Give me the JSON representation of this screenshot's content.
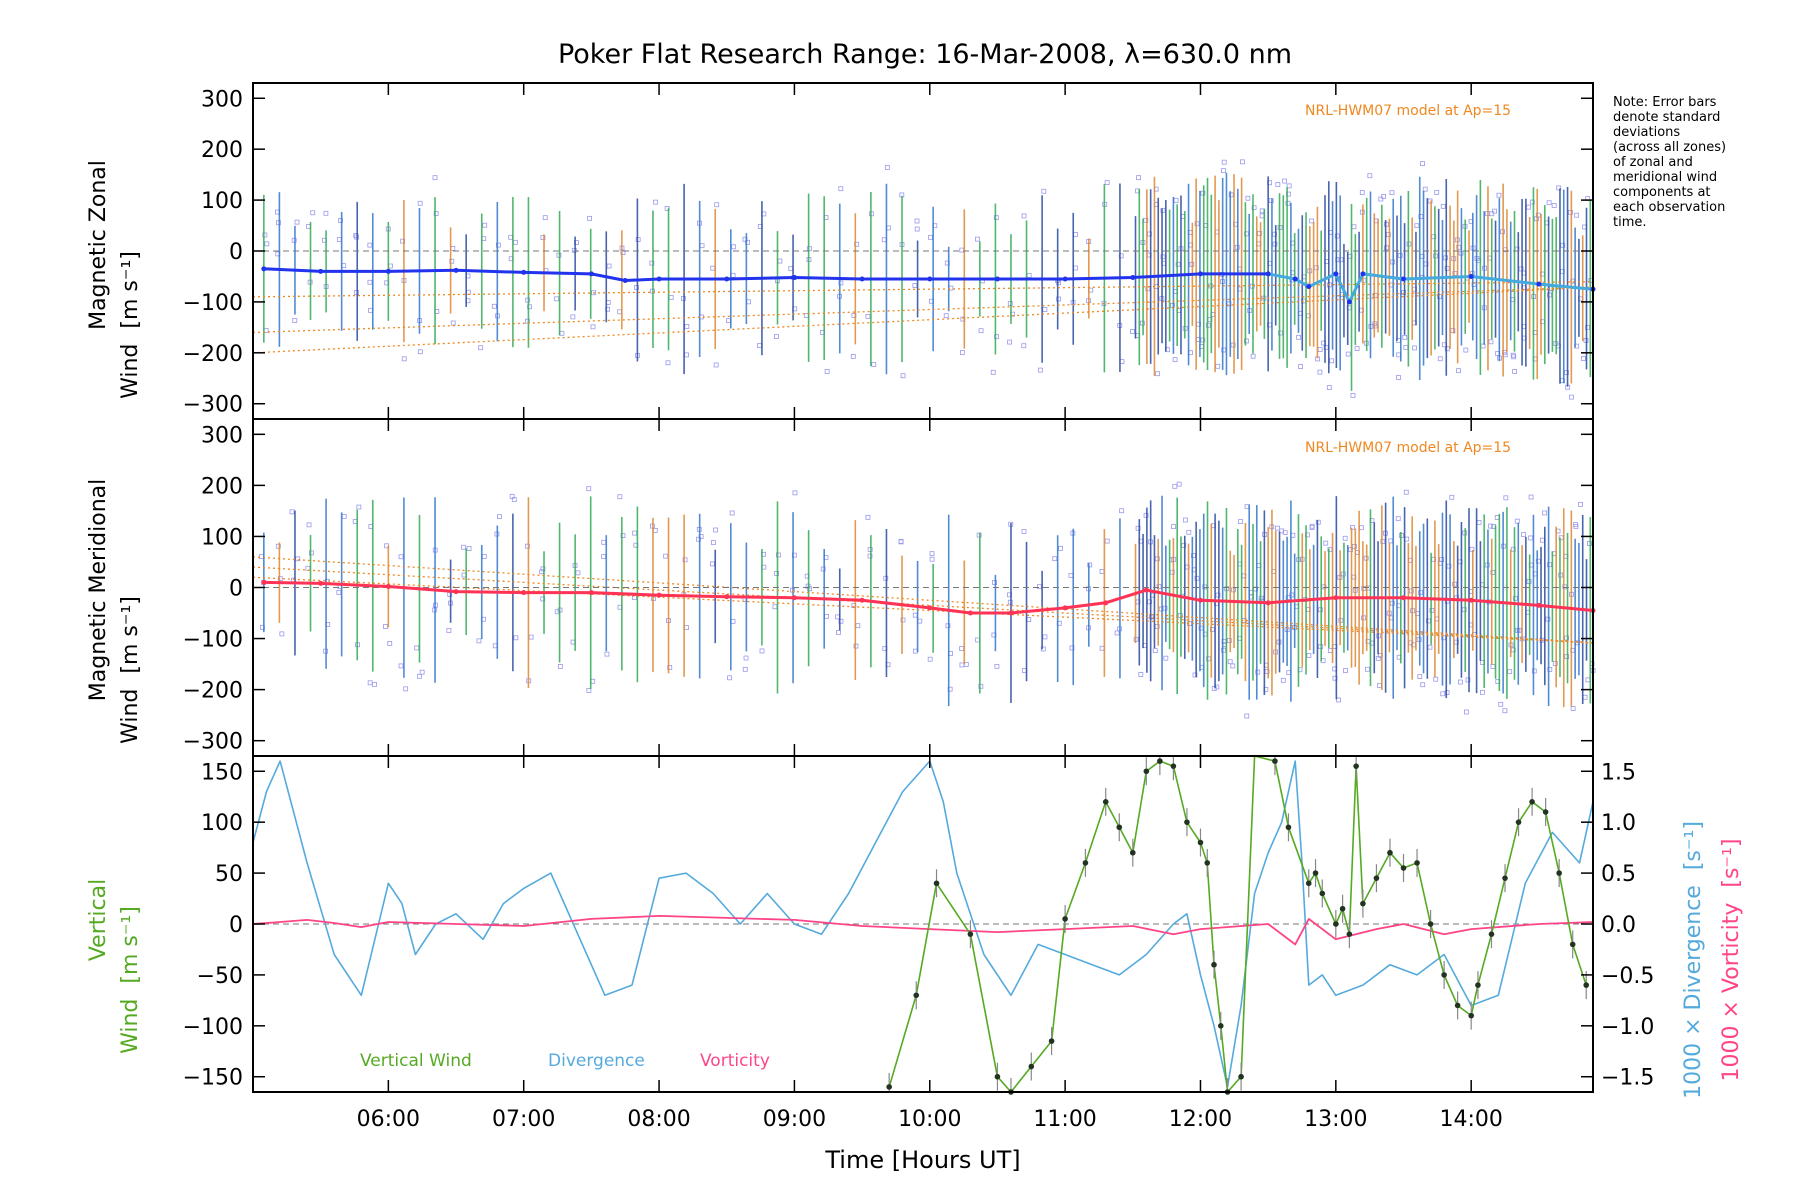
{
  "title": "Poker Flat Research Range: 16-Mar-2008, λ=630.0 nm",
  "note": [
    "Note: Error bars",
    "denote standard",
    "deviations",
    "(across all zones)",
    "of zonal and",
    "meridional wind",
    "components at",
    "each observation",
    "time."
  ],
  "colors": {
    "zonal": "#2233ee",
    "zonal_late": "#44aadd",
    "meridional": "#ff3355",
    "vertical": "#55aa22",
    "divergence": "#55aadd",
    "vorticity": "#ff4488",
    "model": "#ee8822",
    "scatter": "#9999ee",
    "errorbar": "#1a3a9a"
  },
  "chart_data": [
    {
      "type": "line",
      "panel": "zonal",
      "ylabel": [
        "Magnetic Zonal",
        "Wind"
      ],
      "yunit": "[m s⁻¹]",
      "ylim": [
        -330,
        330
      ],
      "yticks": [
        300,
        200,
        100,
        0,
        -100,
        -200,
        -300
      ],
      "model_label": "NRL-HWM07 model at Ap=15",
      "series": [
        {
          "x": [
            5.08,
            5.5,
            6.0,
            6.5,
            7.0,
            7.5,
            7.75,
            8.0,
            8.5,
            9.0,
            9.5,
            10.0,
            10.5,
            11.0,
            11.5,
            12.0,
            12.5,
            12.7,
            12.8,
            13.0,
            13.1,
            13.2,
            13.5,
            14.0,
            14.5,
            14.9
          ],
          "y": [
            -35,
            -40,
            -40,
            -38,
            -42,
            -45,
            -58,
            -55,
            -55,
            -52,
            -55,
            -55,
            -55,
            -55,
            -52,
            -45,
            -45,
            -55,
            -70,
            -45,
            -100,
            -45,
            -55,
            -50,
            -65,
            -75
          ]
        }
      ]
    },
    {
      "type": "line",
      "panel": "meridional",
      "ylabel": [
        "Magnetic Meridional",
        "Wind"
      ],
      "yunit": "[m s⁻¹]",
      "ylim": [
        -330,
        330
      ],
      "yticks": [
        300,
        200,
        100,
        0,
        -100,
        -200,
        -300
      ],
      "model_label": "NRL-HWM07 model at Ap=15",
      "series": [
        {
          "x": [
            5.08,
            5.5,
            6.0,
            6.5,
            7.0,
            7.5,
            8.0,
            8.5,
            9.0,
            9.5,
            10.0,
            10.3,
            10.6,
            11.0,
            11.3,
            11.6,
            12.0,
            12.5,
            13.0,
            13.5,
            14.0,
            14.5,
            14.9
          ],
          "y": [
            10,
            8,
            2,
            -8,
            -10,
            -10,
            -15,
            -18,
            -20,
            -25,
            -40,
            -50,
            -50,
            -40,
            -30,
            -5,
            -25,
            -30,
            -20,
            -20,
            -25,
            -35,
            -45
          ]
        }
      ]
    },
    {
      "type": "line",
      "panel": "vertical",
      "xlabel": "Time [Hours UT]",
      "xlim": [
        5.0,
        14.9
      ],
      "xticks": [
        6,
        7,
        8,
        9,
        10,
        11,
        12,
        13,
        14
      ],
      "xticklabels": [
        "06:00",
        "07:00",
        "08:00",
        "09:00",
        "10:00",
        "11:00",
        "12:00",
        "13:00",
        "14:00"
      ],
      "ylabel": [
        "Vertical",
        "Wind"
      ],
      "yunit": "[m s⁻¹]",
      "ylim": [
        -165,
        165
      ],
      "yticks": [
        150,
        100,
        50,
        0,
        -50,
        -100,
        -150
      ],
      "y2label": "1000 × Divergence",
      "y2unit": "[s⁻¹]",
      "y3label": "1000 × Vorticity",
      "y3unit": "[s⁻¹]",
      "y2lim": [
        -1.65,
        1.65
      ],
      "y2ticks": [
        "1.5",
        "1.0",
        "0.5",
        "0.0",
        "−0.5",
        "−1.0",
        "−1.5"
      ],
      "legend": [
        "Vertical Wind",
        "Divergence",
        "Vorticity"
      ],
      "series": [
        {
          "name": "Vertical Wind",
          "x": [
            9.7,
            9.9,
            10.05,
            10.3,
            10.5,
            10.6,
            10.75,
            10.9,
            11.0,
            11.15,
            11.3,
            11.4,
            11.5,
            11.6,
            11.7,
            11.8,
            11.9,
            12.0,
            12.05,
            12.1,
            12.15,
            12.2,
            12.3,
            12.4,
            12.55,
            12.65,
            12.8,
            12.85,
            12.9,
            13.0,
            13.05,
            13.1,
            13.15,
            13.2,
            13.3,
            13.4,
            13.5,
            13.6,
            13.7,
            13.8,
            13.9,
            14.0,
            14.05,
            14.15,
            14.25,
            14.35,
            14.45,
            14.55,
            14.65,
            14.75,
            14.85
          ],
          "y": [
            -160,
            -70,
            40,
            -10,
            -150,
            -165,
            -140,
            -115,
            5,
            60,
            120,
            95,
            70,
            150,
            160,
            155,
            100,
            80,
            60,
            -40,
            -100,
            -165,
            -150,
            170,
            160,
            95,
            40,
            50,
            30,
            0,
            15,
            -10,
            155,
            20,
            45,
            70,
            55,
            60,
            0,
            -50,
            -80,
            -90,
            -60,
            -10,
            45,
            100,
            120,
            110,
            50,
            -20,
            -60
          ]
        },
        {
          "name": "Divergence",
          "x": [
            5.0,
            5.1,
            5.2,
            5.4,
            5.6,
            5.8,
            6.0,
            6.1,
            6.2,
            6.35,
            6.5,
            6.7,
            6.85,
            7.0,
            7.2,
            7.4,
            7.6,
            7.8,
            8.0,
            8.2,
            8.4,
            8.6,
            8.8,
            9.0,
            9.2,
            9.4,
            9.6,
            9.8,
            10.0,
            10.1,
            10.2,
            10.4,
            10.6,
            10.8,
            11.0,
            11.2,
            11.4,
            11.6,
            11.8,
            11.9,
            12.0,
            12.1,
            12.2,
            12.3,
            12.4,
            12.5,
            12.6,
            12.7,
            12.75,
            12.8,
            12.9,
            13.0,
            13.2,
            13.4,
            13.6,
            13.8,
            14.0,
            14.2,
            14.4,
            14.6,
            14.8,
            14.9
          ],
          "y": [
            0.8,
            1.3,
            1.6,
            0.6,
            -0.3,
            -0.7,
            0.4,
            0.2,
            -0.3,
            0.0,
            0.1,
            -0.15,
            0.2,
            0.35,
            0.5,
            -0.1,
            -0.7,
            -0.6,
            0.45,
            0.5,
            0.3,
            0.0,
            0.3,
            0.0,
            -0.1,
            0.3,
            0.8,
            1.3,
            1.6,
            1.2,
            0.5,
            -0.3,
            -0.7,
            -0.2,
            -0.3,
            -0.4,
            -0.5,
            -0.3,
            0.0,
            0.1,
            -0.5,
            -1.0,
            -1.6,
            -0.8,
            0.3,
            0.7,
            1.0,
            1.6,
            0.6,
            -0.6,
            -0.5,
            -0.7,
            -0.6,
            -0.4,
            -0.5,
            -0.3,
            -0.8,
            -0.7,
            0.4,
            0.9,
            0.6,
            1.2
          ]
        },
        {
          "name": "Vorticity",
          "x": [
            5.0,
            5.2,
            5.4,
            5.6,
            5.8,
            6.0,
            6.5,
            7.0,
            7.5,
            8.0,
            8.5,
            9.0,
            9.5,
            10.0,
            10.5,
            11.0,
            11.5,
            11.8,
            12.0,
            12.5,
            12.7,
            12.8,
            13.0,
            13.3,
            13.5,
            13.8,
            14.0,
            14.5,
            14.9
          ],
          "y": [
            0.0,
            0.02,
            0.04,
            0.01,
            -0.03,
            0.02,
            0.0,
            -0.02,
            0.05,
            0.08,
            0.06,
            0.04,
            -0.02,
            -0.05,
            -0.08,
            -0.05,
            -0.02,
            -0.1,
            -0.05,
            0.0,
            -0.2,
            0.05,
            -0.15,
            -0.05,
            0.0,
            -0.1,
            -0.05,
            0.0,
            0.02
          ]
        }
      ]
    }
  ]
}
